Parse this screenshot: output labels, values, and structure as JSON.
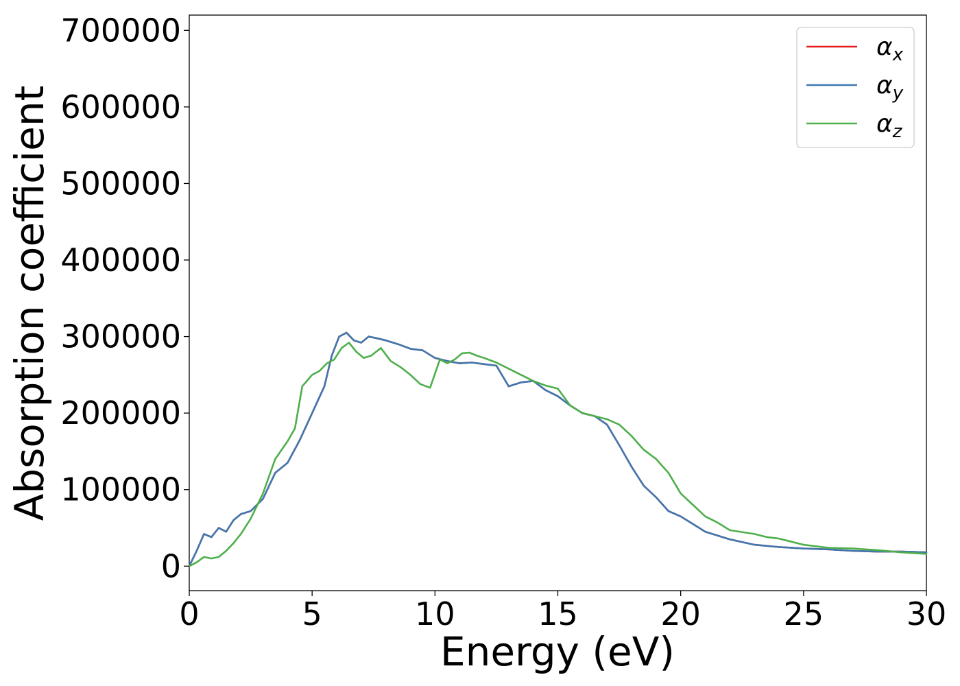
{
  "chart_data": {
    "type": "line",
    "title": "",
    "xlabel": "Energy (eV)",
    "ylabel": "Absorption coefficient",
    "xlim": [
      0,
      30
    ],
    "ylim": [
      -32000,
      720000
    ],
    "xticks": [
      "0",
      "5",
      "10",
      "15",
      "20",
      "25",
      "30"
    ],
    "yticks": [
      "0",
      "100000",
      "200000",
      "300000",
      "400000",
      "500000",
      "600000",
      "700000"
    ],
    "grid": false,
    "legend_position": "top-right",
    "series": [
      {
        "name": "α_x",
        "base": "α",
        "sub": "x",
        "color": "#e41a1c",
        "x": [
          0,
          0.3,
          0.6,
          0.9,
          1.2,
          1.5,
          1.8,
          2.1,
          2.5,
          3,
          3.5,
          4,
          4.5,
          5,
          5.5,
          5.8,
          6.1,
          6.4,
          6.7,
          7,
          7.3,
          7.6,
          8,
          8.5,
          9,
          9.5,
          10,
          10.5,
          11,
          11.5,
          12,
          12.5,
          13,
          13.5,
          14,
          14.5,
          15,
          15.5,
          16,
          16.5,
          17,
          17.5,
          18,
          18.5,
          19,
          19.5,
          20,
          20.5,
          21,
          22,
          23,
          24,
          25,
          26,
          27,
          28,
          29,
          30
        ],
        "y": [
          0,
          20000,
          42000,
          38000,
          50000,
          45000,
          60000,
          68000,
          72000,
          88000,
          122000,
          135000,
          165000,
          200000,
          235000,
          275000,
          300000,
          305000,
          295000,
          292000,
          300000,
          298000,
          295000,
          290000,
          284000,
          282000,
          272000,
          268000,
          265000,
          266000,
          264000,
          262000,
          235000,
          240000,
          242000,
          230000,
          222000,
          210000,
          200000,
          196000,
          185000,
          158000,
          130000,
          105000,
          90000,
          72000,
          65000,
          55000,
          45000,
          35000,
          28000,
          25000,
          23000,
          22000,
          20000,
          19000,
          19000,
          18000
        ]
      },
      {
        "name": "α_y",
        "base": "α",
        "sub": "y",
        "color": "#3f78b0",
        "x": [
          0,
          0.3,
          0.6,
          0.9,
          1.2,
          1.5,
          1.8,
          2.1,
          2.5,
          3,
          3.5,
          4,
          4.5,
          5,
          5.5,
          5.8,
          6.1,
          6.4,
          6.7,
          7,
          7.3,
          7.6,
          8,
          8.5,
          9,
          9.5,
          10,
          10.5,
          11,
          11.5,
          12,
          12.5,
          13,
          13.5,
          14,
          14.5,
          15,
          15.5,
          16,
          16.5,
          17,
          17.5,
          18,
          18.5,
          19,
          19.5,
          20,
          20.5,
          21,
          22,
          23,
          24,
          25,
          26,
          27,
          28,
          29,
          30
        ],
        "y": [
          0,
          20000,
          42000,
          38000,
          50000,
          45000,
          60000,
          68000,
          72000,
          88000,
          122000,
          135000,
          165000,
          200000,
          235000,
          275000,
          300000,
          305000,
          295000,
          292000,
          300000,
          298000,
          295000,
          290000,
          284000,
          282000,
          272000,
          268000,
          265000,
          266000,
          264000,
          262000,
          235000,
          240000,
          242000,
          230000,
          222000,
          210000,
          200000,
          196000,
          185000,
          158000,
          130000,
          105000,
          90000,
          72000,
          65000,
          55000,
          45000,
          35000,
          28000,
          25000,
          23000,
          22000,
          20000,
          19000,
          19000,
          18000
        ]
      },
      {
        "name": "α_z",
        "base": "α",
        "sub": "z",
        "color": "#4daf4a",
        "x": [
          0,
          0.3,
          0.6,
          0.9,
          1.2,
          1.5,
          1.8,
          2.1,
          2.5,
          3,
          3.5,
          4,
          4.3,
          4.6,
          5,
          5.3,
          5.6,
          5.9,
          6.2,
          6.5,
          6.8,
          7.1,
          7.4,
          7.8,
          8.2,
          8.6,
          9,
          9.4,
          9.8,
          10.2,
          10.5,
          10.8,
          11.1,
          11.4,
          11.7,
          12,
          12.5,
          13,
          13.5,
          14,
          14.5,
          15,
          15.5,
          16,
          16.5,
          17,
          17.5,
          18,
          18.5,
          19,
          19.5,
          20,
          20.5,
          21,
          21.5,
          22,
          23,
          23.5,
          24,
          25,
          26,
          27,
          28,
          29,
          30
        ],
        "y": [
          0,
          5000,
          12000,
          10000,
          12000,
          20000,
          30000,
          42000,
          62000,
          95000,
          140000,
          163000,
          180000,
          235000,
          250000,
          255000,
          265000,
          270000,
          285000,
          292000,
          280000,
          272000,
          275000,
          285000,
          268000,
          260000,
          250000,
          238000,
          233000,
          270000,
          265000,
          270000,
          278000,
          279000,
          275000,
          272000,
          266000,
          258000,
          250000,
          242000,
          236000,
          232000,
          210000,
          200000,
          196000,
          192000,
          185000,
          170000,
          152000,
          140000,
          122000,
          95000,
          80000,
          65000,
          57000,
          47000,
          42000,
          38000,
          36000,
          28000,
          24000,
          23000,
          21000,
          18000,
          16000
        ]
      }
    ]
  }
}
